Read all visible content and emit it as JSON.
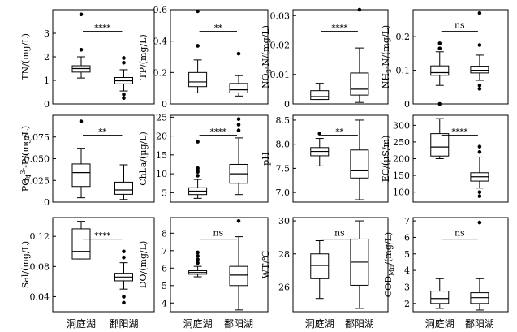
{
  "x_categories": [
    "洞庭湖",
    "鄱阳湖"
  ],
  "chart_data": [
    {
      "type": "box",
      "ylabel": "TN/(mg/L)",
      "ylim": [
        0,
        4
      ],
      "yticks": [
        "0",
        "1",
        "2",
        "3"
      ],
      "significance": "****",
      "boxes": [
        {
          "category": "洞庭湖",
          "q1": 1.35,
          "median": 1.5,
          "q3": 1.62,
          "whisker_low": 1.1,
          "whisker_high": 2.0,
          "outliers": [
            2.3,
            3.8
          ]
        },
        {
          "category": "鄱阳湖",
          "q1": 0.85,
          "median": 0.98,
          "q3": 1.12,
          "whisker_low": 0.55,
          "whisker_high": 1.45,
          "outliers": [
            1.75,
            1.95,
            0.4,
            0.25
          ]
        }
      ]
    },
    {
      "type": "box",
      "ylabel": "TP/(mg/L)",
      "ylim": [
        0,
        0.6
      ],
      "yticks": [
        "0",
        "0.2",
        "0.4",
        "0.6"
      ],
      "significance": "**",
      "boxes": [
        {
          "category": "洞庭湖",
          "q1": 0.11,
          "median": 0.14,
          "q3": 0.2,
          "whisker_low": 0.07,
          "whisker_high": 0.28,
          "outliers": [
            0.37,
            0.59
          ]
        },
        {
          "category": "鄱阳湖",
          "q1": 0.07,
          "median": 0.09,
          "q3": 0.13,
          "whisker_low": 0.05,
          "whisker_high": 0.18,
          "outliers": [
            0.32
          ]
        }
      ]
    },
    {
      "type": "box",
      "ylabel": "NO3-N/(mg/L)",
      "ylim": [
        0,
        0.032
      ],
      "yticks": [
        "0",
        "0.01",
        "0.02",
        "0.03"
      ],
      "significance": "****",
      "boxes": [
        {
          "category": "洞庭湖",
          "q1": 0.0015,
          "median": 0.0025,
          "q3": 0.0045,
          "whisker_low": 0.0015,
          "whisker_high": 0.007,
          "outliers": []
        },
        {
          "category": "鄱阳湖",
          "q1": 0.003,
          "median": 0.005,
          "q3": 0.0105,
          "whisker_low": 0.0005,
          "whisker_high": 0.019,
          "outliers": [
            0.032
          ]
        }
      ]
    },
    {
      "type": "box",
      "ylabel": "NH3-N/(mg/L)",
      "ylim": [
        0,
        0.28
      ],
      "yticks": [
        "0",
        "0.1",
        "0.2"
      ],
      "significance": "ns",
      "boxes": [
        {
          "category": "洞庭湖",
          "q1": 0.085,
          "median": 0.093,
          "q3": 0.113,
          "whisker_low": 0.055,
          "whisker_high": 0.155,
          "outliers": [
            0.165,
            0.18,
            0.0
          ]
        },
        {
          "category": "鄱阳湖",
          "q1": 0.092,
          "median": 0.1,
          "q3": 0.112,
          "whisker_low": 0.07,
          "whisker_high": 0.145,
          "outliers": [
            0.175,
            0.27,
            0.055,
            0.045
          ]
        }
      ]
    },
    {
      "type": "box",
      "ylabel": "PO43--P/(mg/L)",
      "ylim": [
        0,
        0.1
      ],
      "yticks": [
        "0",
        "0.025",
        "0.050",
        "0.075"
      ],
      "significance": "**",
      "boxes": [
        {
          "category": "洞庭湖",
          "q1": 0.018,
          "median": 0.034,
          "q3": 0.044,
          "whisker_low": 0.005,
          "whisker_high": 0.062,
          "outliers": [
            0.093
          ]
        },
        {
          "category": "鄱阳湖",
          "q1": 0.009,
          "median": 0.014,
          "q3": 0.023,
          "whisker_low": 0.003,
          "whisker_high": 0.043,
          "outliers": []
        }
      ]
    },
    {
      "type": "box",
      "ylabel": "Chl.a/(μg/L)",
      "ylim": [
        2.5,
        25.5
      ],
      "yticks": [
        "5",
        "10",
        "15",
        "20",
        "25"
      ],
      "significance": "****",
      "boxes": [
        {
          "category": "洞庭湖",
          "q1": 4.5,
          "median": 5.4,
          "q3": 6.3,
          "whisker_low": 3.5,
          "whisker_high": 8.5,
          "outliers": [
            9.5,
            10.5,
            11.0,
            11.5,
            18.5
          ]
        },
        {
          "category": "鄱阳湖",
          "q1": 7.5,
          "median": 10.0,
          "q3": 12.5,
          "whisker_low": 4.5,
          "whisker_high": 19.5,
          "outliers": [
            21.5,
            23.0,
            24.5
          ]
        }
      ]
    },
    {
      "type": "box",
      "ylabel": "pH",
      "ylim": [
        6.8,
        8.6
      ],
      "yticks": [
        "7.0",
        "7.5",
        "8.0",
        "8.5"
      ],
      "significance": "**",
      "boxes": [
        {
          "category": "洞庭湖",
          "q1": 7.76,
          "median": 7.85,
          "q3": 7.93,
          "whisker_low": 7.55,
          "whisker_high": 8.12,
          "outliers": [
            8.22
          ]
        },
        {
          "category": "鄱阳湖",
          "q1": 7.3,
          "median": 7.45,
          "q3": 7.88,
          "whisker_low": 6.85,
          "whisker_high": 8.5,
          "outliers": []
        }
      ]
    },
    {
      "type": "box",
      "ylabel": "EC/(μS/m)",
      "ylim": [
        70,
        330
      ],
      "yticks": [
        "100",
        "150",
        "200",
        "250",
        "300"
      ],
      "significance": "****",
      "boxes": [
        {
          "category": "洞庭湖",
          "q1": 208,
          "median": 235,
          "q3": 275,
          "whisker_low": 200,
          "whisker_high": 320,
          "outliers": []
        },
        {
          "category": "鄱阳湖",
          "q1": 133,
          "median": 146,
          "q3": 158,
          "whisker_low": 112,
          "whisker_high": 205,
          "outliers": [
            220,
            236,
            100,
            88
          ]
        }
      ]
    },
    {
      "type": "box",
      "ylabel": "Sal/(mg/L)",
      "ylim": [
        0.02,
        0.145
      ],
      "yticks": [
        "0.04",
        "0.08",
        "0.12"
      ],
      "significance": "****",
      "boxes": [
        {
          "category": "洞庭湖",
          "q1": 0.09,
          "median": 0.1,
          "q3": 0.13,
          "whisker_low": 0.09,
          "whisker_high": 0.14,
          "outliers": []
        },
        {
          "category": "鄱阳湖",
          "q1": 0.061,
          "median": 0.066,
          "q3": 0.071,
          "whisker_low": 0.05,
          "whisker_high": 0.085,
          "outliers": [
            0.092,
            0.1,
            0.04,
            0.032
          ]
        }
      ]
    },
    {
      "type": "box",
      "ylabel": "DO/(mg/L)",
      "ylim": [
        3.5,
        8.9
      ],
      "yticks": [
        "4",
        "5",
        "6",
        "7",
        "8"
      ],
      "significance": "ns",
      "boxes": [
        {
          "category": "洞庭湖",
          "q1": 5.65,
          "median": 5.75,
          "q3": 5.85,
          "whisker_low": 5.5,
          "whisker_high": 6.1,
          "outliers": [
            6.3,
            6.5,
            6.7,
            6.9
          ]
        },
        {
          "category": "鄱阳湖",
          "q1": 5.0,
          "median": 5.6,
          "q3": 6.1,
          "whisker_low": 3.6,
          "whisker_high": 7.8,
          "outliers": [
            8.7
          ]
        }
      ]
    },
    {
      "type": "box",
      "ylabel": "WT/℃",
      "ylim": [
        24.5,
        30.2
      ],
      "yticks": [
        "26",
        "28",
        "30"
      ],
      "significance": "ns",
      "boxes": [
        {
          "category": "洞庭湖",
          "q1": 26.5,
          "median": 27.3,
          "q3": 28.0,
          "whisker_low": 25.3,
          "whisker_high": 28.8,
          "outliers": []
        },
        {
          "category": "鄱阳湖",
          "q1": 26.1,
          "median": 27.5,
          "q3": 28.9,
          "whisker_low": 24.7,
          "whisker_high": 30.0,
          "outliers": []
        }
      ]
    },
    {
      "type": "box",
      "ylabel": "CODMn/(mg/L)",
      "ylim": [
        1.5,
        7.2
      ],
      "yticks": [
        "2",
        "3",
        "4",
        "5",
        "6",
        "7"
      ],
      "significance": "ns",
      "boxes": [
        {
          "category": "洞庭湖",
          "q1": 2.0,
          "median": 2.3,
          "q3": 2.75,
          "whisker_low": 1.7,
          "whisker_high": 3.5,
          "outliers": []
        },
        {
          "category": "鄱阳湖",
          "q1": 2.0,
          "median": 2.35,
          "q3": 2.65,
          "whisker_low": 1.6,
          "whisker_high": 3.5,
          "outliers": [
            6.9
          ]
        }
      ]
    }
  ]
}
